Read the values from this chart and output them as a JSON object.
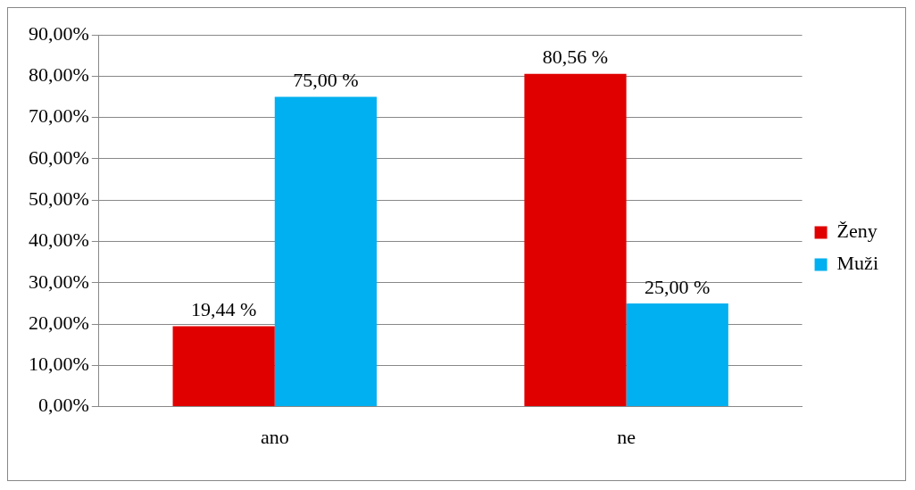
{
  "chart_data": {
    "type": "bar",
    "categories": [
      "ano",
      "ne"
    ],
    "series": [
      {
        "name": "Ženy",
        "color": "#e00000",
        "values": [
          19.44,
          80.56
        ],
        "value_labels": [
          "19,44 %",
          "80,56 %"
        ]
      },
      {
        "name": "Muži",
        "color": "#00b0f0",
        "values": [
          75,
          25
        ],
        "value_labels": [
          "75,00 %",
          "25,00 %"
        ]
      }
    ],
    "ylim": [
      0,
      90
    ],
    "yticks": [
      {
        "value": 0,
        "label": "0,00%"
      },
      {
        "value": 10,
        "label": "10,00%"
      },
      {
        "value": 20,
        "label": "20,00%"
      },
      {
        "value": 30,
        "label": "30,00%"
      },
      {
        "value": 40,
        "label": "40,00%"
      },
      {
        "value": 50,
        "label": "50,00%"
      },
      {
        "value": 60,
        "label": "60,00%"
      },
      {
        "value": 70,
        "label": "70,00%"
      },
      {
        "value": 80,
        "label": "80,00%"
      },
      {
        "value": 90,
        "label": "90,00%"
      }
    ],
    "grid": "y",
    "legend": "right"
  }
}
